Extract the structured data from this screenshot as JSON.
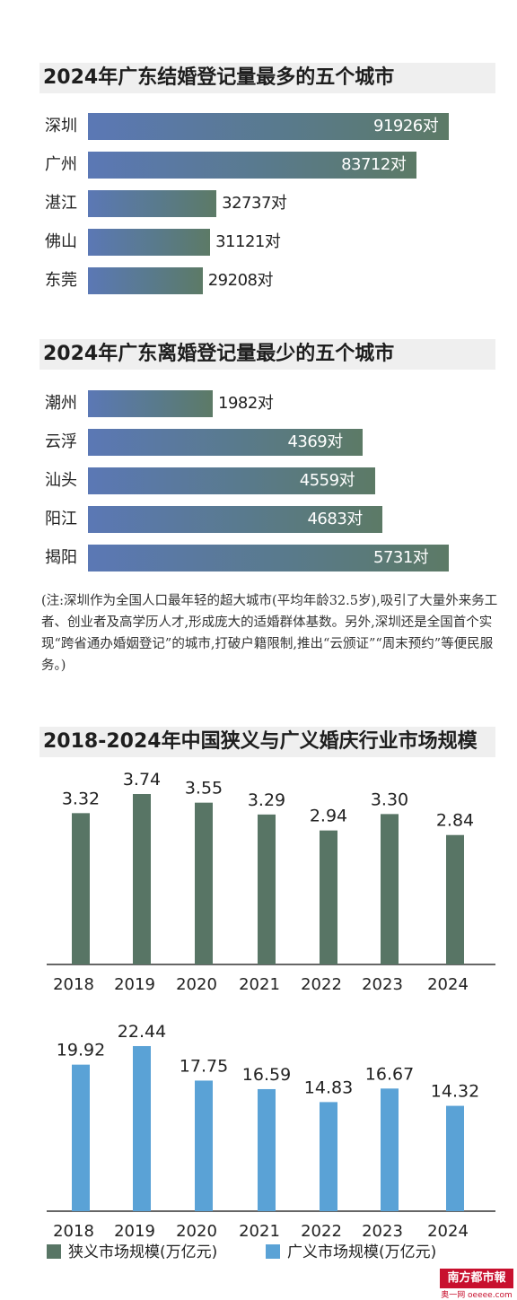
{
  "marriage": {
    "title": "2024年广东结婚登记量最多的五个城市",
    "chart_data": {
      "type": "bar",
      "orientation": "horizontal",
      "title": "2024年广东结婚登记量最多的五个城市",
      "categories": [
        "深圳",
        "广州",
        "湛江",
        "佛山",
        "东莞"
      ],
      "values": [
        91926,
        83712,
        32737,
        31121,
        29208
      ],
      "unit": "对",
      "labels": [
        "91926对",
        "83712对",
        "32737对",
        "31121对",
        "29208对"
      ],
      "max": 91926
    }
  },
  "divorce": {
    "title": "2024年广东离婚登记量最少的五个城市",
    "chart_data": {
      "type": "bar",
      "orientation": "horizontal",
      "title": "2024年广东离婚登记量最少的五个城市",
      "categories": [
        "潮州",
        "云浮",
        "汕头",
        "阳江",
        "揭阳"
      ],
      "values": [
        1982,
        4369,
        4559,
        4683,
        5731
      ],
      "unit": "对",
      "labels": [
        "1982对",
        "4369对",
        "4559对",
        "4683对",
        "5731对"
      ],
      "max": 5731
    }
  },
  "note": "(注:深圳作为全国人口最年轻的超大城市(平均年龄32.5岁),吸引了大量外来务工者、创业者及高学历人才,形成庞大的适婚群体基数。另外,深圳还是全国首个实现“跨省通办婚姻登记”的城市,打破户籍限制,推出“云颁证”“周末预约”等便民服务。)",
  "market": {
    "title": "2018-2024年中国狭义与广义婚庆行业市场规模",
    "chart_data": [
      {
        "type": "bar",
        "categories": [
          "2018",
          "2019",
          "2020",
          "2021",
          "2022",
          "2023",
          "2024"
        ],
        "series": [
          {
            "name": "狭义市场规模(万亿元)",
            "values": [
              3.32,
              3.74,
              3.55,
              3.29,
              2.94,
              3.3,
              2.84
            ]
          }
        ],
        "labels": [
          "3.32",
          "3.74",
          "3.55",
          "3.29",
          "2.94",
          "3.30",
          "2.84"
        ],
        "color": "#587565"
      },
      {
        "type": "bar",
        "categories": [
          "2018",
          "2019",
          "2020",
          "2021",
          "2022",
          "2023",
          "2024"
        ],
        "series": [
          {
            "name": "广义市场规模(万亿元)",
            "values": [
              19.92,
              22.44,
              17.75,
              16.59,
              14.83,
              16.67,
              14.32
            ]
          }
        ],
        "labels": [
          "19.92",
          "22.44",
          "17.75",
          "16.59",
          "14.83",
          "16.67",
          "14.32"
        ],
        "color": "#5aa2d6"
      }
    ]
  },
  "legend": {
    "narrow": "狭义市场规模(万亿元)",
    "broad": "广义市场规模(万亿元)",
    "narrow_color": "#587565",
    "broad_color": "#5aa2d6"
  },
  "logo": {
    "text": "南方都市報",
    "sub": "奥一网 oeeee.com"
  }
}
